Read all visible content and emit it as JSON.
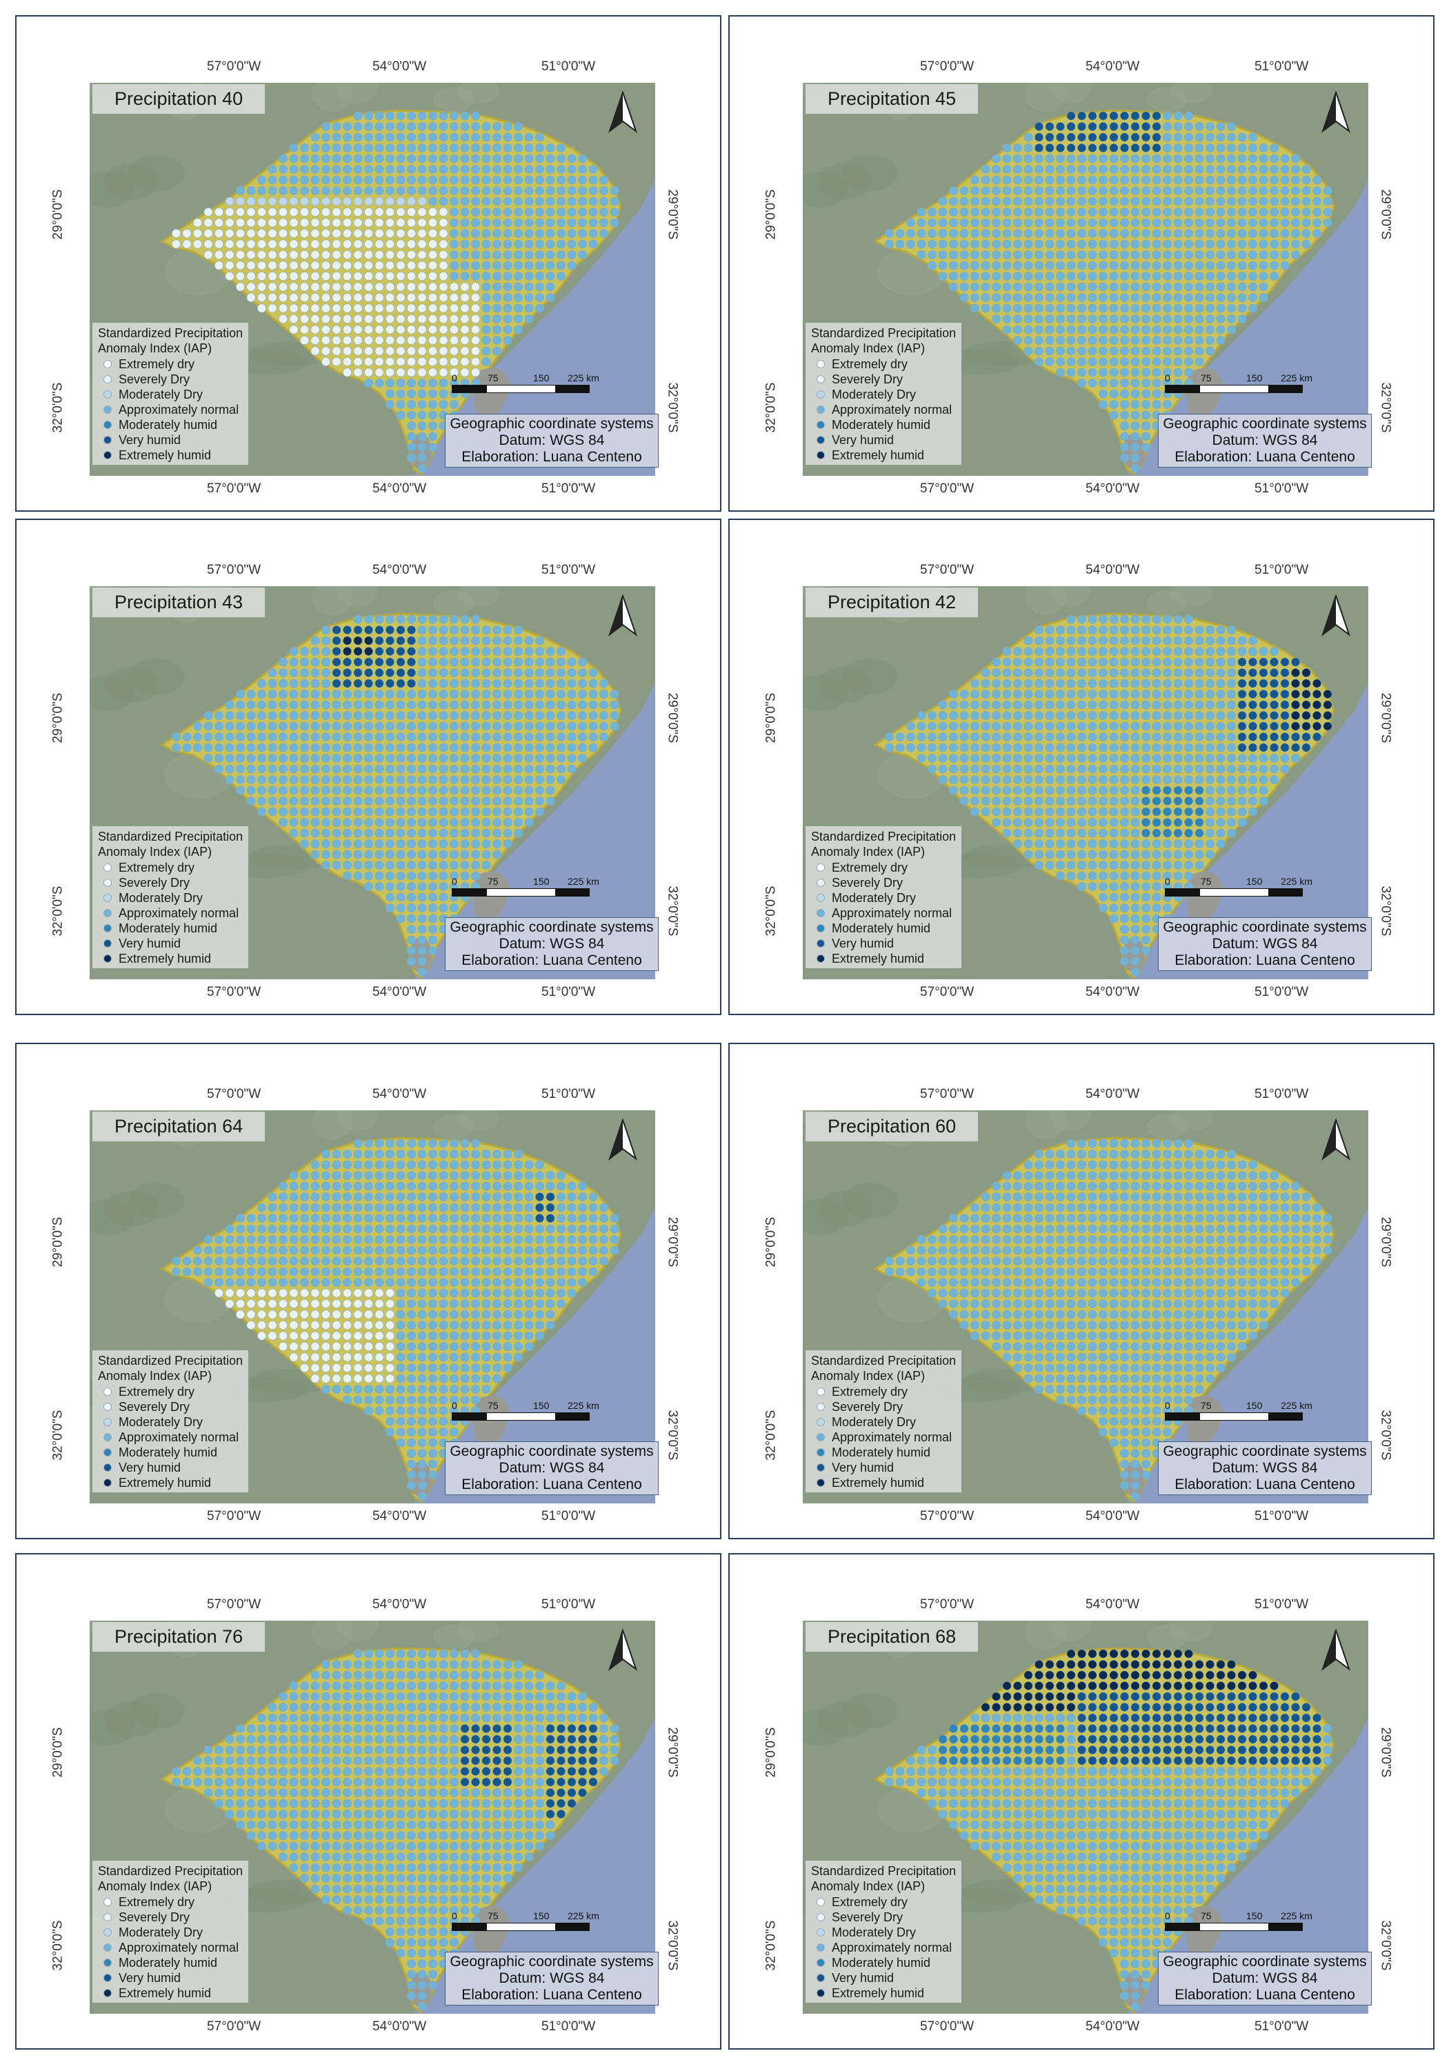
{
  "panels": [
    {
      "title": "Precipitation 40",
      "focus": [
        [
          0.35,
          0.52,
          0.28,
          0.2,
          1
        ],
        [
          0.55,
          0.62,
          0.15,
          0.12,
          1
        ]
      ],
      "dominant": "normal_dry"
    },
    {
      "title": "Precipitation 45",
      "focus": [
        [
          0.52,
          0.1,
          0.12,
          0.08,
          5
        ]
      ],
      "dominant": "normal"
    },
    {
      "title": "Precipitation 43",
      "focus": [
        [
          0.5,
          0.18,
          0.08,
          0.09,
          5
        ],
        [
          0.47,
          0.16,
          0.03,
          0.03,
          6
        ]
      ],
      "dominant": "normal"
    },
    {
      "title": "Precipitation 42",
      "focus": [
        [
          0.84,
          0.3,
          0.08,
          0.12,
          5
        ],
        [
          0.9,
          0.28,
          0.04,
          0.08,
          6
        ],
        [
          0.65,
          0.58,
          0.06,
          0.07,
          4
        ]
      ],
      "dominant": "normal"
    },
    {
      "title": "Precipitation 64",
      "focus": [
        [
          0.35,
          0.58,
          0.2,
          0.12,
          1
        ],
        [
          0.8,
          0.25,
          0.02,
          0.05,
          5
        ]
      ],
      "dominant": "normal"
    },
    {
      "title": "Precipitation 60",
      "focus": [],
      "dominant": "normal"
    },
    {
      "title": "Precipitation 76",
      "focus": [
        [
          0.7,
          0.35,
          0.05,
          0.08,
          5
        ],
        [
          0.85,
          0.38,
          0.05,
          0.12,
          5
        ]
      ],
      "dominant": "normal"
    },
    {
      "title": "Precipitation 68",
      "focus": [
        [
          0.55,
          0.12,
          0.3,
          0.12,
          6
        ],
        [
          0.7,
          0.28,
          0.22,
          0.1,
          5
        ],
        [
          0.35,
          0.32,
          0.12,
          0.06,
          4
        ]
      ],
      "dominant": "normal"
    }
  ],
  "axes": {
    "top_ticks": [
      "57°0'0\"W",
      "54°0'0\"W",
      "51°0'0\"W"
    ],
    "bottom_ticks": [
      "57°0'0\"W",
      "54°0'0\"W",
      "51°0'0\"W"
    ],
    "lat_ticks": [
      "29°0'0\"S",
      "32°0'0\"S"
    ]
  },
  "legend": {
    "title_line1": "Standardized Precipitation",
    "title_line2": "Anomaly Index (IAP)",
    "items": [
      {
        "label": "Extremely dry",
        "color": "#ffffff"
      },
      {
        "label": "Severely Dry",
        "color": "#e8f2f8"
      },
      {
        "label": "Moderately Dry",
        "color": "#bcd8ea"
      },
      {
        "label": "Approximately normal",
        "color": "#6fb3d6"
      },
      {
        "label": "Moderately humid",
        "color": "#2e86b8"
      },
      {
        "label": "Very humid",
        "color": "#14568e"
      },
      {
        "label": "Extremely humid",
        "color": "#0a2a52"
      }
    ]
  },
  "info": {
    "line1": "Geographic coordinate systems",
    "line2": "Datum: WGS 84",
    "line3": "Elaboration: Luana Centeno"
  },
  "scale": {
    "labels": [
      "0",
      "75",
      "150",
      "225 km"
    ]
  },
  "colors": {
    "land_outside": "#8a9a84",
    "ocean": "#8b9dc4",
    "state_fill": "#c9c35a",
    "lagoon": "#9a9a94",
    "normal_dot": "#6fb3d6",
    "normal_dry_dot": "#bcd8ea"
  },
  "icons": {
    "north": "north-arrow-icon"
  }
}
